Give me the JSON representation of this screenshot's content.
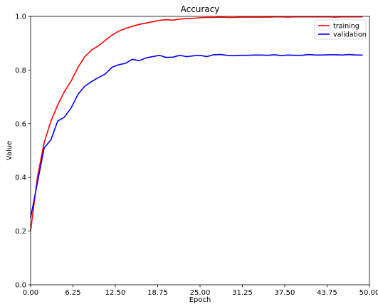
{
  "chart_data": {
    "type": "line",
    "title": "Accuracy",
    "xlabel": "Epoch",
    "ylabel": "Value",
    "xlim": [
      0,
      50
    ],
    "ylim": [
      0,
      1
    ],
    "x_ticks": [
      0,
      6.25,
      12.5,
      18.75,
      25,
      31.25,
      37.5,
      43.75,
      50
    ],
    "x_tick_labels": [
      "0.00",
      "6.25",
      "12.50",
      "18.75",
      "25.00",
      "31.25",
      "37.50",
      "43.75",
      "50.00"
    ],
    "y_ticks": [
      0,
      0.2,
      0.4,
      0.6,
      0.8,
      1.0
    ],
    "y_tick_labels": [
      "0.0",
      "0.2",
      "0.4",
      "0.6",
      "0.8",
      "1.0"
    ],
    "grid": false,
    "legend_position": "top-right",
    "x": [
      0,
      1,
      2,
      3,
      4,
      5,
      6,
      7,
      8,
      9,
      10,
      11,
      12,
      13,
      14,
      15,
      16,
      17,
      18,
      19,
      20,
      21,
      22,
      23,
      24,
      25,
      26,
      27,
      28,
      29,
      30,
      31,
      32,
      33,
      34,
      35,
      36,
      37,
      38,
      39,
      40,
      41,
      42,
      43,
      44,
      45,
      46,
      47,
      48,
      49
    ],
    "series": [
      {
        "name": "training",
        "color": "#ff0000",
        "values": [
          0.2,
          0.4,
          0.53,
          0.61,
          0.67,
          0.72,
          0.76,
          0.81,
          0.85,
          0.875,
          0.89,
          0.91,
          0.93,
          0.945,
          0.955,
          0.963,
          0.97,
          0.975,
          0.98,
          0.985,
          0.988,
          0.986,
          0.99,
          0.992,
          0.993,
          0.995,
          0.996,
          0.996,
          0.997,
          0.996,
          0.996,
          0.997,
          0.997,
          0.997,
          0.997,
          0.997,
          0.998,
          0.998,
          0.997,
          0.998,
          0.998,
          0.998,
          0.998,
          0.998,
          0.998,
          0.997,
          0.998,
          0.998,
          0.998,
          0.998
        ]
      },
      {
        "name": "validation",
        "color": "#0000ff",
        "values": [
          0.25,
          0.38,
          0.51,
          0.54,
          0.61,
          0.625,
          0.66,
          0.71,
          0.74,
          0.757,
          0.772,
          0.785,
          0.81,
          0.82,
          0.825,
          0.84,
          0.835,
          0.845,
          0.85,
          0.855,
          0.847,
          0.848,
          0.855,
          0.85,
          0.853,
          0.855,
          0.85,
          0.857,
          0.858,
          0.855,
          0.854,
          0.855,
          0.855,
          0.856,
          0.856,
          0.855,
          0.857,
          0.854,
          0.856,
          0.855,
          0.855,
          0.858,
          0.856,
          0.856,
          0.857,
          0.857,
          0.856,
          0.858,
          0.856,
          0.856
        ]
      }
    ]
  }
}
